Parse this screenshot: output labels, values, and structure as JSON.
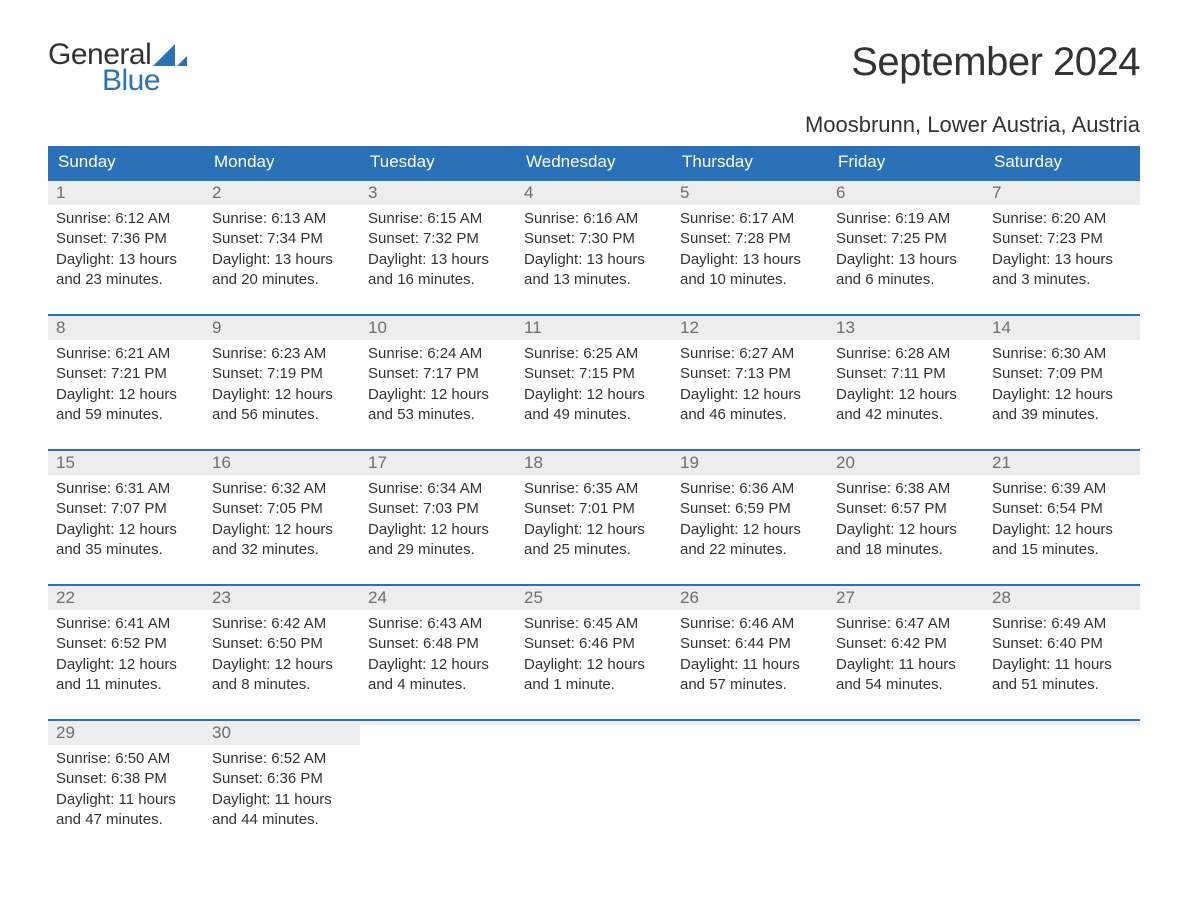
{
  "brand": {
    "word1": "General",
    "word2": "Blue",
    "logo_color_dark": "#333333",
    "logo_color_blue": "#2a71b8",
    "sail_color": "#2a71b8"
  },
  "title": {
    "month": "September 2024",
    "location": "Moosbrunn, Lower Austria, Austria",
    "title_fontsize": 40,
    "location_fontsize": 22
  },
  "colors": {
    "header_bg": "#2a71b8",
    "header_text": "#ffffff",
    "week_border": "#2a71b8",
    "daynum_bg": "#ededed",
    "daynum_text": "#6e6e6e",
    "body_text": "#333333",
    "page_bg": "#ffffff"
  },
  "calendar": {
    "type": "table",
    "columns": [
      "Sunday",
      "Monday",
      "Tuesday",
      "Wednesday",
      "Thursday",
      "Friday",
      "Saturday"
    ],
    "weeks": [
      [
        {
          "n": "1",
          "sunrise": "Sunrise: 6:12 AM",
          "sunset": "Sunset: 7:36 PM",
          "d1": "Daylight: 13 hours",
          "d2": "and 23 minutes."
        },
        {
          "n": "2",
          "sunrise": "Sunrise: 6:13 AM",
          "sunset": "Sunset: 7:34 PM",
          "d1": "Daylight: 13 hours",
          "d2": "and 20 minutes."
        },
        {
          "n": "3",
          "sunrise": "Sunrise: 6:15 AM",
          "sunset": "Sunset: 7:32 PM",
          "d1": "Daylight: 13 hours",
          "d2": "and 16 minutes."
        },
        {
          "n": "4",
          "sunrise": "Sunrise: 6:16 AM",
          "sunset": "Sunset: 7:30 PM",
          "d1": "Daylight: 13 hours",
          "d2": "and 13 minutes."
        },
        {
          "n": "5",
          "sunrise": "Sunrise: 6:17 AM",
          "sunset": "Sunset: 7:28 PM",
          "d1": "Daylight: 13 hours",
          "d2": "and 10 minutes."
        },
        {
          "n": "6",
          "sunrise": "Sunrise: 6:19 AM",
          "sunset": "Sunset: 7:25 PM",
          "d1": "Daylight: 13 hours",
          "d2": "and 6 minutes."
        },
        {
          "n": "7",
          "sunrise": "Sunrise: 6:20 AM",
          "sunset": "Sunset: 7:23 PM",
          "d1": "Daylight: 13 hours",
          "d2": "and 3 minutes."
        }
      ],
      [
        {
          "n": "8",
          "sunrise": "Sunrise: 6:21 AM",
          "sunset": "Sunset: 7:21 PM",
          "d1": "Daylight: 12 hours",
          "d2": "and 59 minutes."
        },
        {
          "n": "9",
          "sunrise": "Sunrise: 6:23 AM",
          "sunset": "Sunset: 7:19 PM",
          "d1": "Daylight: 12 hours",
          "d2": "and 56 minutes."
        },
        {
          "n": "10",
          "sunrise": "Sunrise: 6:24 AM",
          "sunset": "Sunset: 7:17 PM",
          "d1": "Daylight: 12 hours",
          "d2": "and 53 minutes."
        },
        {
          "n": "11",
          "sunrise": "Sunrise: 6:25 AM",
          "sunset": "Sunset: 7:15 PM",
          "d1": "Daylight: 12 hours",
          "d2": "and 49 minutes."
        },
        {
          "n": "12",
          "sunrise": "Sunrise: 6:27 AM",
          "sunset": "Sunset: 7:13 PM",
          "d1": "Daylight: 12 hours",
          "d2": "and 46 minutes."
        },
        {
          "n": "13",
          "sunrise": "Sunrise: 6:28 AM",
          "sunset": "Sunset: 7:11 PM",
          "d1": "Daylight: 12 hours",
          "d2": "and 42 minutes."
        },
        {
          "n": "14",
          "sunrise": "Sunrise: 6:30 AM",
          "sunset": "Sunset: 7:09 PM",
          "d1": "Daylight: 12 hours",
          "d2": "and 39 minutes."
        }
      ],
      [
        {
          "n": "15",
          "sunrise": "Sunrise: 6:31 AM",
          "sunset": "Sunset: 7:07 PM",
          "d1": "Daylight: 12 hours",
          "d2": "and 35 minutes."
        },
        {
          "n": "16",
          "sunrise": "Sunrise: 6:32 AM",
          "sunset": "Sunset: 7:05 PM",
          "d1": "Daylight: 12 hours",
          "d2": "and 32 minutes."
        },
        {
          "n": "17",
          "sunrise": "Sunrise: 6:34 AM",
          "sunset": "Sunset: 7:03 PM",
          "d1": "Daylight: 12 hours",
          "d2": "and 29 minutes."
        },
        {
          "n": "18",
          "sunrise": "Sunrise: 6:35 AM",
          "sunset": "Sunset: 7:01 PM",
          "d1": "Daylight: 12 hours",
          "d2": "and 25 minutes."
        },
        {
          "n": "19",
          "sunrise": "Sunrise: 6:36 AM",
          "sunset": "Sunset: 6:59 PM",
          "d1": "Daylight: 12 hours",
          "d2": "and 22 minutes."
        },
        {
          "n": "20",
          "sunrise": "Sunrise: 6:38 AM",
          "sunset": "Sunset: 6:57 PM",
          "d1": "Daylight: 12 hours",
          "d2": "and 18 minutes."
        },
        {
          "n": "21",
          "sunrise": "Sunrise: 6:39 AM",
          "sunset": "Sunset: 6:54 PM",
          "d1": "Daylight: 12 hours",
          "d2": "and 15 minutes."
        }
      ],
      [
        {
          "n": "22",
          "sunrise": "Sunrise: 6:41 AM",
          "sunset": "Sunset: 6:52 PM",
          "d1": "Daylight: 12 hours",
          "d2": "and 11 minutes."
        },
        {
          "n": "23",
          "sunrise": "Sunrise: 6:42 AM",
          "sunset": "Sunset: 6:50 PM",
          "d1": "Daylight: 12 hours",
          "d2": "and 8 minutes."
        },
        {
          "n": "24",
          "sunrise": "Sunrise: 6:43 AM",
          "sunset": "Sunset: 6:48 PM",
          "d1": "Daylight: 12 hours",
          "d2": "and 4 minutes."
        },
        {
          "n": "25",
          "sunrise": "Sunrise: 6:45 AM",
          "sunset": "Sunset: 6:46 PM",
          "d1": "Daylight: 12 hours",
          "d2": "and 1 minute."
        },
        {
          "n": "26",
          "sunrise": "Sunrise: 6:46 AM",
          "sunset": "Sunset: 6:44 PM",
          "d1": "Daylight: 11 hours",
          "d2": "and 57 minutes."
        },
        {
          "n": "27",
          "sunrise": "Sunrise: 6:47 AM",
          "sunset": "Sunset: 6:42 PM",
          "d1": "Daylight: 11 hours",
          "d2": "and 54 minutes."
        },
        {
          "n": "28",
          "sunrise": "Sunrise: 6:49 AM",
          "sunset": "Sunset: 6:40 PM",
          "d1": "Daylight: 11 hours",
          "d2": "and 51 minutes."
        }
      ],
      [
        {
          "n": "29",
          "sunrise": "Sunrise: 6:50 AM",
          "sunset": "Sunset: 6:38 PM",
          "d1": "Daylight: 11 hours",
          "d2": "and 47 minutes."
        },
        {
          "n": "30",
          "sunrise": "Sunrise: 6:52 AM",
          "sunset": "Sunset: 6:36 PM",
          "d1": "Daylight: 11 hours",
          "d2": "and 44 minutes."
        },
        {
          "empty": true
        },
        {
          "empty": true
        },
        {
          "empty": true
        },
        {
          "empty": true
        },
        {
          "empty": true
        }
      ]
    ]
  }
}
